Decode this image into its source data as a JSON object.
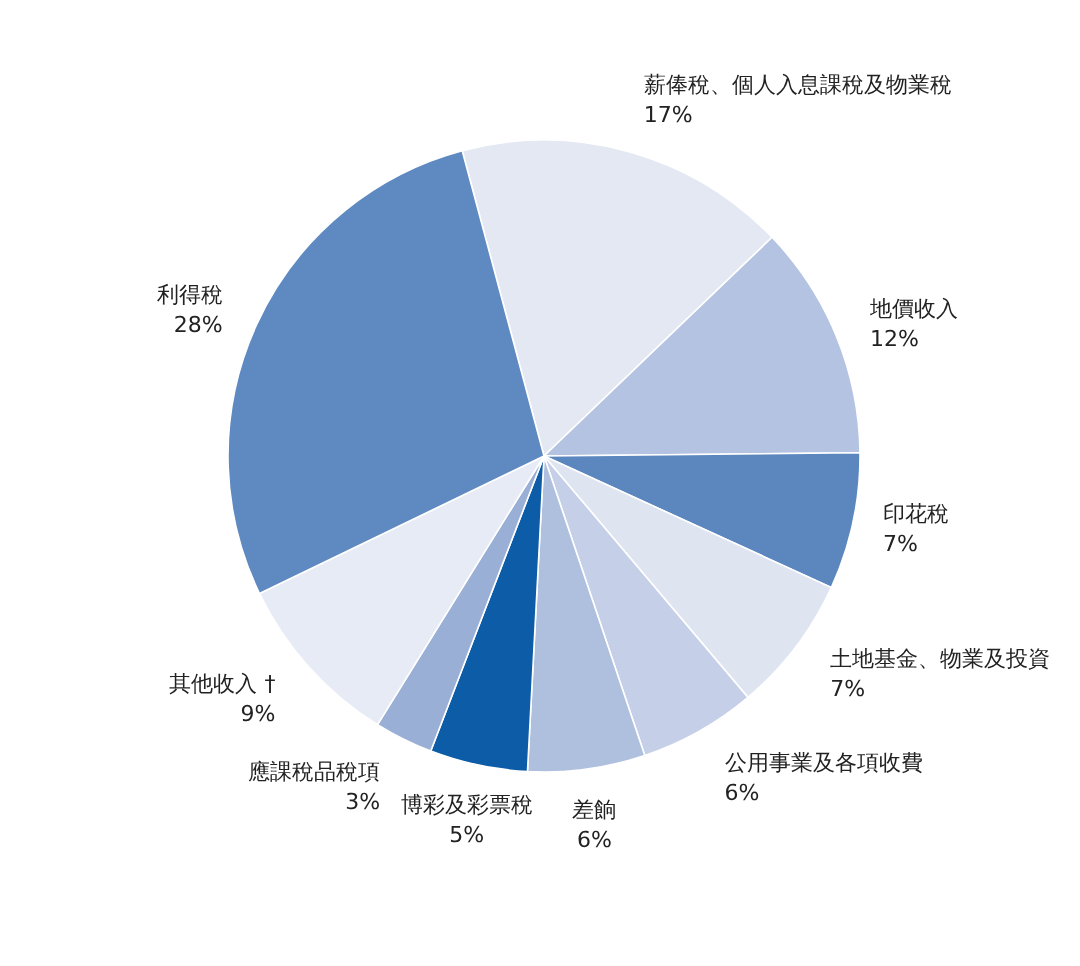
{
  "chart_data": {
    "type": "pie",
    "categories": [
      "薪俸稅、個人入息課稅及物業稅",
      "地價收入",
      "印花稅",
      "土地基金、物業及投資",
      "公用事業及各項收費",
      "差餉",
      "博彩及彩票稅",
      "應課稅品稅項",
      "其他收入 †",
      "利得稅"
    ],
    "values": [
      17,
      12,
      7,
      7,
      6,
      6,
      5,
      3,
      9,
      28
    ],
    "value_labels": [
      "17%",
      "12%",
      "7%",
      "7%",
      "6%",
      "6%",
      "5%",
      "3%",
      "9%",
      "28%"
    ],
    "colors": [
      "#e4e8f3",
      "#b3c3e1",
      "#5b87be",
      "#dfe4f1",
      "#c5d0e8",
      "#afc0df",
      "#0c5ca8",
      "#9aafd6",
      "#e7ebf5",
      "#5e89c1"
    ]
  }
}
